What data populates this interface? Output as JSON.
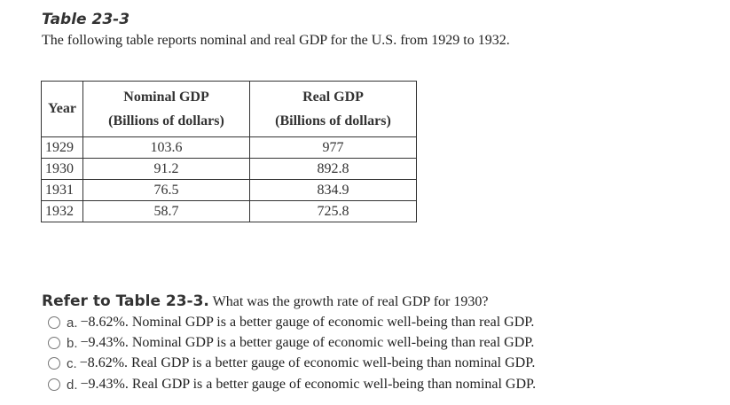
{
  "title": "Table 23-3",
  "intro": "The following table reports nominal and real GDP for the U.S. from 1929 to 1932.",
  "table": {
    "headers": [
      {
        "line1": "Year",
        "line2": ""
      },
      {
        "line1": "Nominal GDP",
        "line2": "(Billions of dollars)"
      },
      {
        "line1": "Real GDP",
        "line2": "(Billions of dollars)"
      }
    ],
    "rows": [
      [
        "1929",
        "103.6",
        "977"
      ],
      [
        "1930",
        "91.2",
        "892.8"
      ],
      [
        "1931",
        "76.5",
        "834.9"
      ],
      [
        "1932",
        "58.7",
        "725.8"
      ]
    ]
  },
  "question": {
    "ref": "Refer to Table 23-3.",
    "text": " What was the growth rate of real GDP for 1930?"
  },
  "options": [
    {
      "letter": "a.",
      "text": "−8.62%. Nominal GDP is a better gauge of economic well-being than real GDP."
    },
    {
      "letter": "b.",
      "text": "−9.43%. Nominal GDP is a better gauge of economic well-being than real GDP."
    },
    {
      "letter": "c.",
      "text": "−8.62%. Real GDP is a better gauge of economic well-being than nominal GDP."
    },
    {
      "letter": "d.",
      "text": "−9.43%. Real GDP is a better gauge of economic well-being than nominal GDP."
    }
  ]
}
